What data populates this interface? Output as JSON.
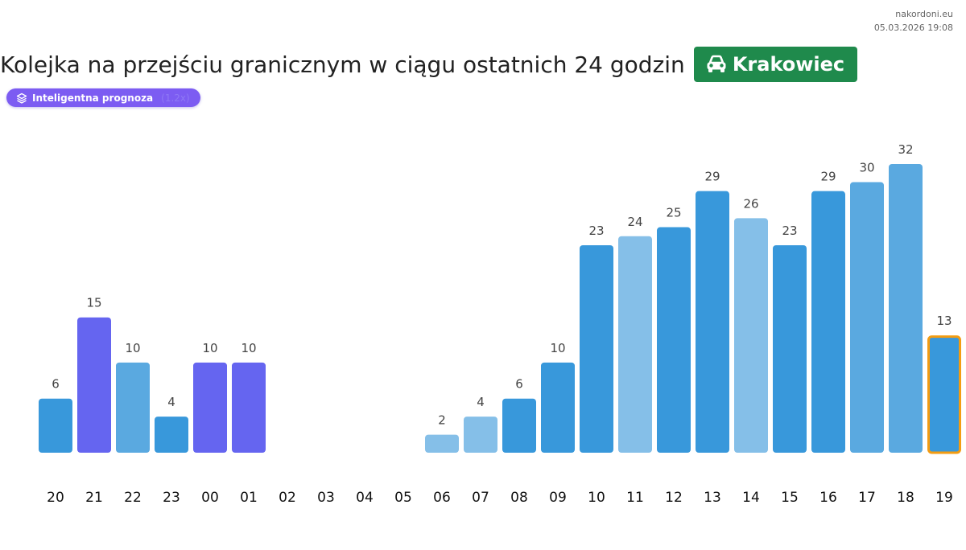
{
  "source": {
    "site": "nakordoni.eu",
    "timestamp": "05.03.2026 19:08"
  },
  "header": {
    "title": "Kolejka na przejściu granicznym w ciągu ostatnich 24 godzin",
    "location": "Krakowiec",
    "location_icon": "car-icon",
    "badge_color": "#1f8a4c"
  },
  "forecast_pill": {
    "label": "Inteligentna prognoza",
    "extra": "(1.2x)",
    "icon": "layers-icon",
    "color": "#7c5cf2"
  },
  "chart_data": {
    "type": "bar",
    "categories": [
      "20",
      "21",
      "22",
      "23",
      "00",
      "01",
      "02",
      "03",
      "04",
      "05",
      "06",
      "07",
      "08",
      "09",
      "10",
      "11",
      "12",
      "13",
      "14",
      "15",
      "16",
      "17",
      "18",
      "19"
    ],
    "values": [
      6,
      15,
      10,
      4,
      10,
      10,
      0,
      0,
      0,
      0,
      2,
      4,
      6,
      10,
      23,
      24,
      25,
      29,
      26,
      23,
      29,
      30,
      32,
      13
    ],
    "value_labels_shown": [
      true,
      true,
      true,
      true,
      true,
      true,
      false,
      false,
      false,
      false,
      true,
      true,
      true,
      true,
      true,
      true,
      true,
      true,
      true,
      true,
      true,
      true,
      true,
      true
    ],
    "bar_colors": [
      "#3898db",
      "#6565f0",
      "#5aa9e0",
      "#3898db",
      "#6565f0",
      "#6565f0",
      "",
      "",
      "",
      "",
      "#85bfe8",
      "#85bfe8",
      "#3898db",
      "#3898db",
      "#3898db",
      "#85bfe8",
      "#3898db",
      "#3898db",
      "#85bfe8",
      "#3898db",
      "#3898db",
      "#5aa9e0",
      "#5aa9e0",
      "#3898db"
    ],
    "highlighted_index": 23,
    "highlight_color": "#f39c12",
    "ylim": [
      0,
      32
    ],
    "title": "",
    "xlabel": "",
    "ylabel": "",
    "grid": false,
    "legend": "none"
  }
}
